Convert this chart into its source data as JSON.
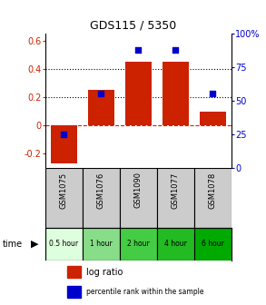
{
  "title": "GDS115 / 5350",
  "samples": [
    "GSM1075",
    "GSM1076",
    "GSM1090",
    "GSM1077",
    "GSM1078"
  ],
  "time_labels": [
    "0.5 hour",
    "1 hour",
    "2 hour",
    "4 hour",
    "6 hour"
  ],
  "log_ratios": [
    -0.27,
    0.25,
    0.45,
    0.45,
    0.1
  ],
  "percentile_ranks_pct": [
    25,
    55,
    88,
    88,
    55
  ],
  "bar_color": "#cc2200",
  "dot_color": "#0000cc",
  "left_ylim": [
    -0.3,
    0.65
  ],
  "right_ylim": [
    0,
    100
  ],
  "left_yticks": [
    -0.2,
    0.0,
    0.2,
    0.4,
    0.6
  ],
  "right_yticks": [
    0,
    25,
    50,
    75,
    100
  ],
  "right_yticklabels": [
    "0",
    "25",
    "50",
    "75",
    "100%"
  ],
  "left_yticklabels": [
    "-0.2",
    "0",
    "0.2",
    "0.4",
    "0.6"
  ],
  "hline_color": "#cc2200",
  "dotted_line_values": [
    0.2,
    0.4
  ],
  "background_color": "#ffffff",
  "cell_bg": "#cccccc",
  "time_cell_colors": [
    "#ddffdd",
    "#88dd88",
    "#44cc44",
    "#22bb22",
    "#00aa00"
  ]
}
